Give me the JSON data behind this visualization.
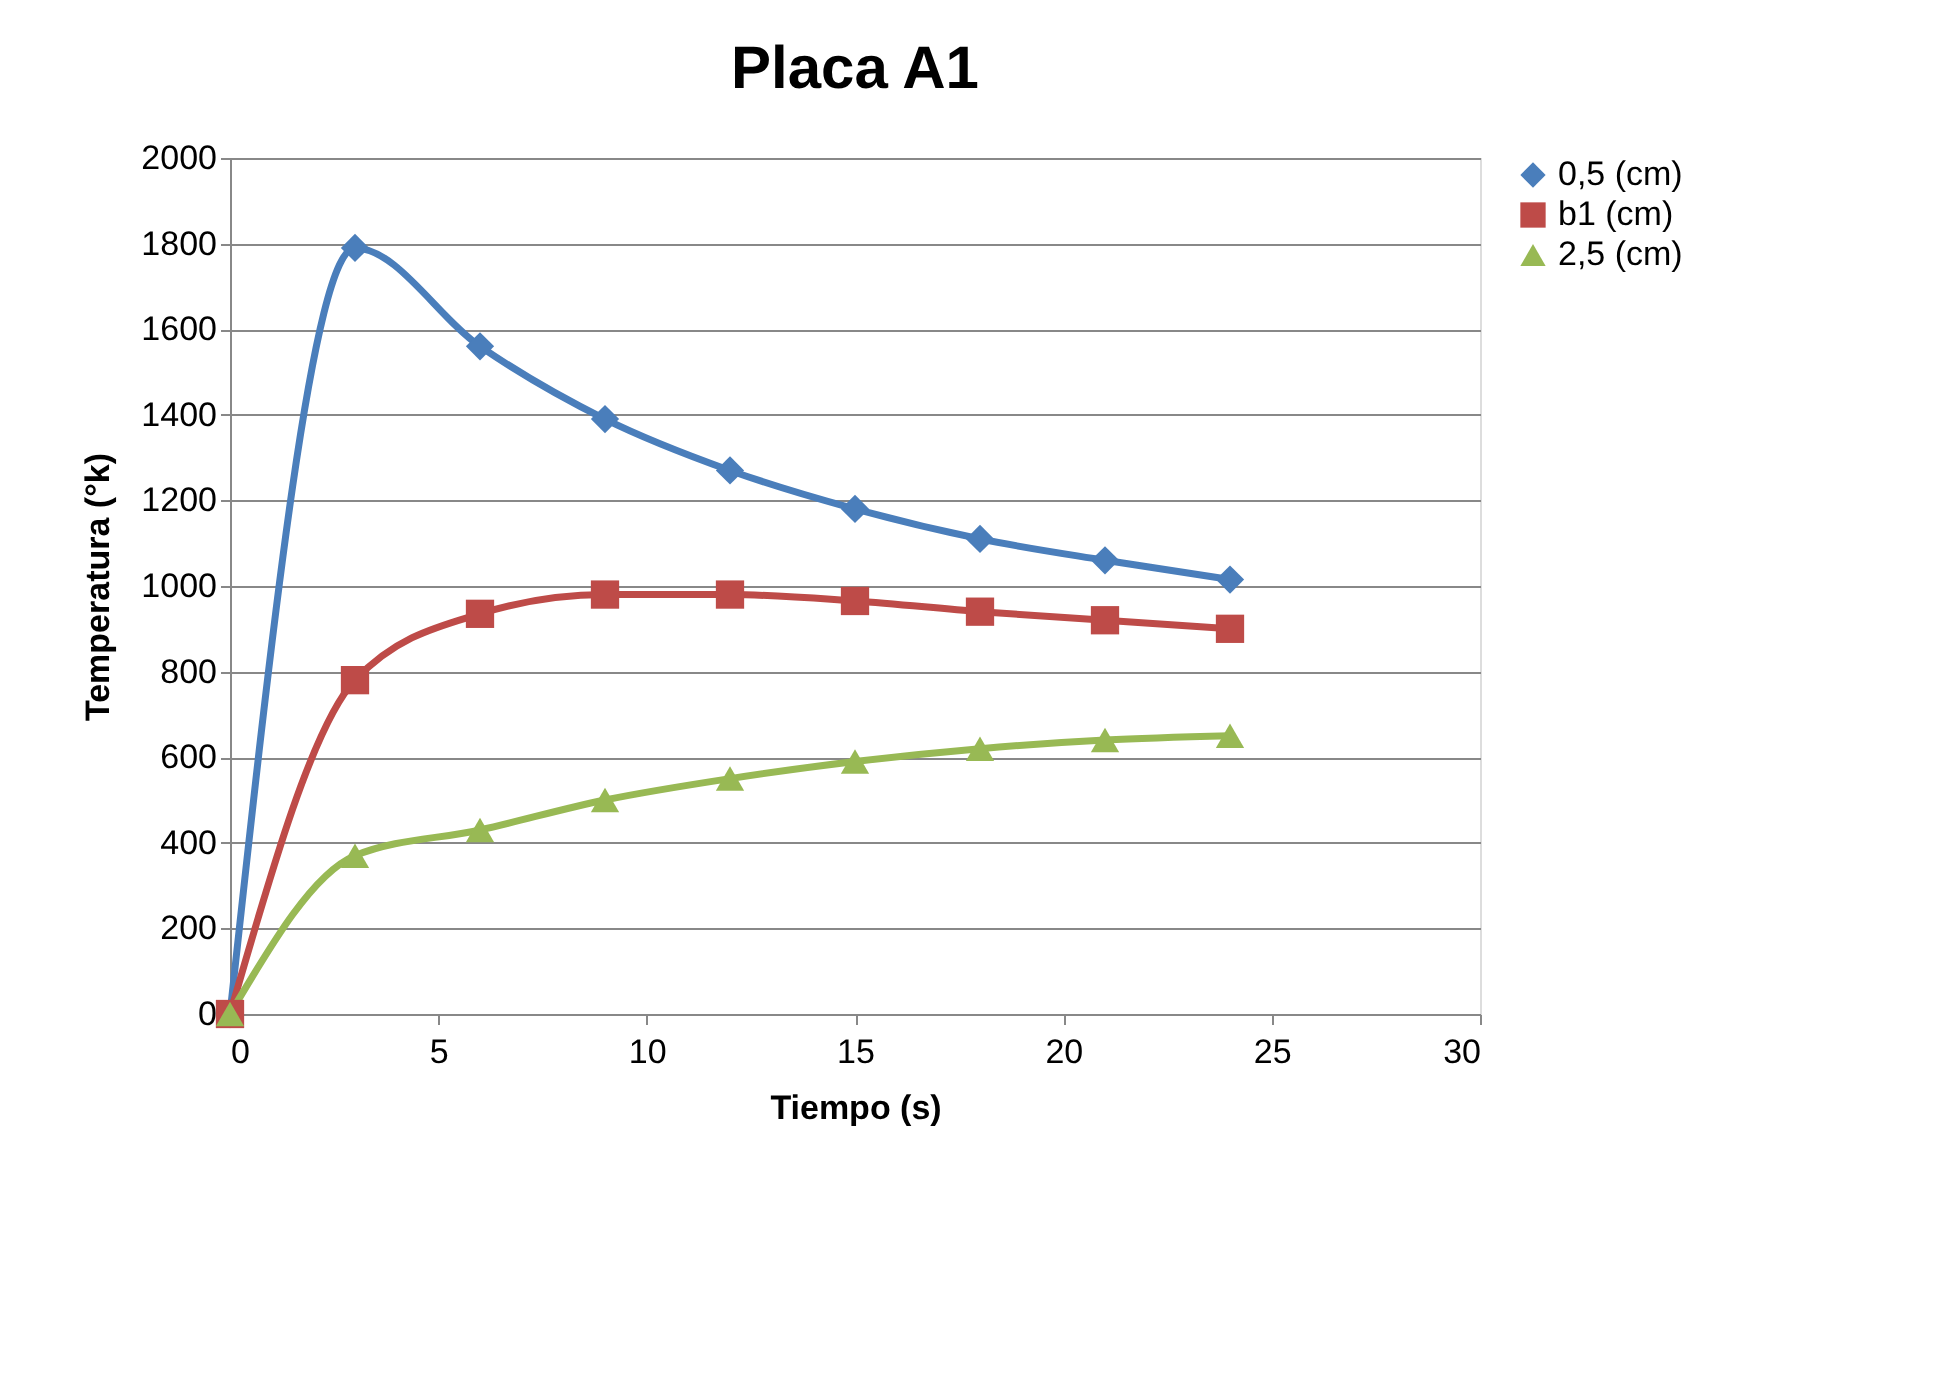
{
  "chart_data": {
    "type": "line",
    "title": "Placa A1",
    "xlabel": "Tiempo (s)",
    "ylabel": "Temperatura (°k)",
    "x": [
      0,
      3,
      6,
      9,
      12,
      15,
      18,
      21,
      24
    ],
    "series": [
      {
        "name": "0,5 (cm)",
        "color": "#4a7ebb",
        "marker": "diamond",
        "values": [
          0,
          1790,
          1560,
          1390,
          1270,
          1180,
          1110,
          1060,
          1015
        ]
      },
      {
        "name": "b1 (cm)",
        "color": "#be4b48",
        "marker": "square",
        "values": [
          0,
          780,
          935,
          980,
          980,
          965,
          940,
          920,
          900
        ]
      },
      {
        "name": "2,5 (cm)",
        "color": "#98b954",
        "marker": "triangle",
        "values": [
          0,
          370,
          430,
          500,
          550,
          590,
          620,
          640,
          650
        ]
      }
    ],
    "xlim": [
      0,
      30
    ],
    "xticks": [
      0,
      5,
      10,
      15,
      20,
      25,
      30
    ],
    "ylim": [
      0,
      2000
    ],
    "yticks": [
      0,
      200,
      400,
      600,
      800,
      1000,
      1200,
      1400,
      1600,
      1800,
      2000
    ],
    "grid": "y",
    "legend": "right",
    "line_style": "solid"
  }
}
